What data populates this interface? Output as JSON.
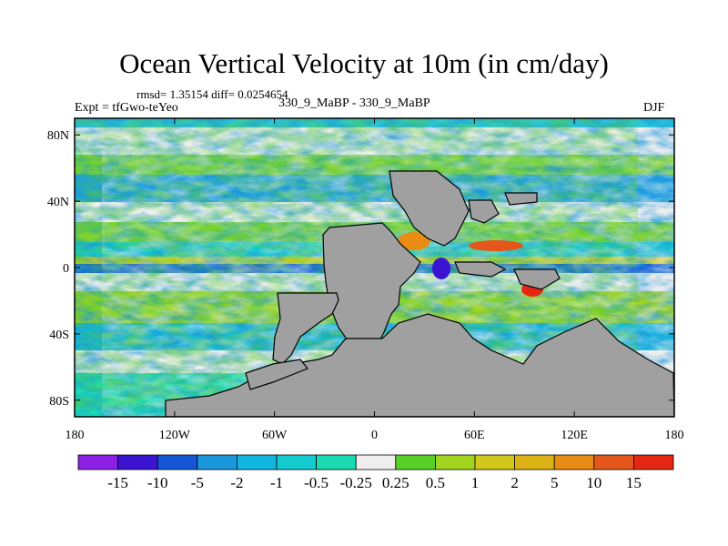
{
  "figure": {
    "title": "Ocean Vertical Velocity at 10m (in cm/day)",
    "stats": "rmsd= 1.35154 diff= 0.0254654",
    "experiment": "Expt = tfGwo-teYeo",
    "comparison": "330_9_MaBP - 330_9_MaBP",
    "season": "DJF"
  },
  "chart_data": {
    "type": "heatmap",
    "title": "Ocean Vertical Velocity at 10m (in cm/day)",
    "xlabel": "",
    "ylabel": "",
    "xlim": [
      -180,
      180
    ],
    "ylim": [
      -90,
      90
    ],
    "x_ticks": [
      {
        "value": -180,
        "label": "180"
      },
      {
        "value": -120,
        "label": "120W"
      },
      {
        "value": -60,
        "label": "60W"
      },
      {
        "value": 0,
        "label": "0"
      },
      {
        "value": 60,
        "label": "60E"
      },
      {
        "value": 120,
        "label": "120E"
      },
      {
        "value": 180,
        "label": "180"
      }
    ],
    "y_ticks": [
      {
        "value": 80,
        "label": "80N"
      },
      {
        "value": 40,
        "label": "40N"
      },
      {
        "value": 0,
        "label": "0"
      },
      {
        "value": -40,
        "label": "40S"
      },
      {
        "value": -80,
        "label": "80S"
      }
    ],
    "colorbar": {
      "levels": [
        "-15",
        "-10",
        "-5",
        "-2",
        "-1",
        "-0.5",
        "-0.25",
        "0.25",
        "0.5",
        "1",
        "2",
        "5",
        "10",
        "15"
      ],
      "colors": [
        "#8c1fe6",
        "#3a14d0",
        "#1556d8",
        "#1996dc",
        "#12b6e0",
        "#14cbd0",
        "#1cdbb4",
        "#eeeeee",
        "#58d028",
        "#a0d41e",
        "#d2c81c",
        "#ddb216",
        "#e98c14",
        "#e4561a",
        "#e52814"
      ]
    },
    "land_color": "#a0a0a0"
  }
}
